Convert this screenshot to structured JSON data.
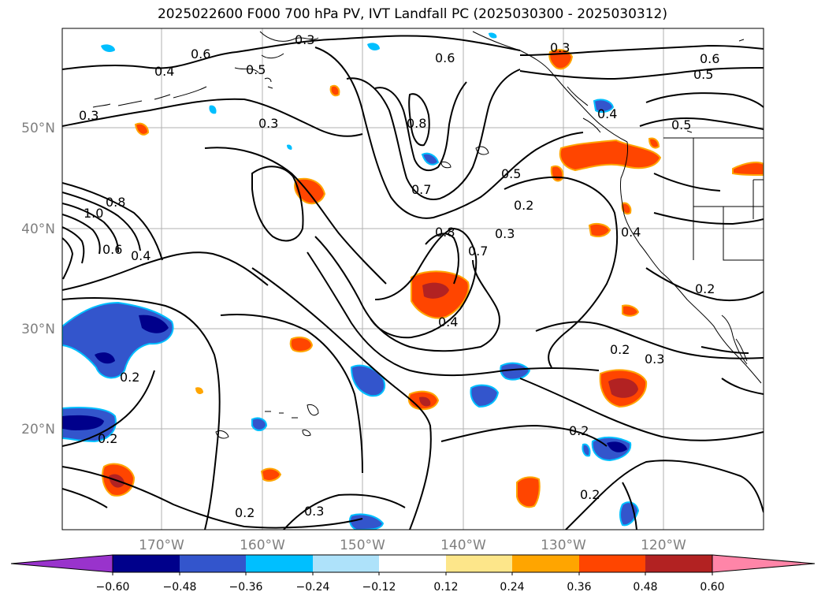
{
  "title": "2025022600 F000 700 hPa PV, IVT Landfall PC (2025030300 - 2025030312)",
  "lon_ticks": [
    "170°W",
    "160°W",
    "150°W",
    "140°W",
    "130°W",
    "120°W"
  ],
  "lat_ticks": [
    "50°N",
    "40°N",
    "30°N",
    "20°N"
  ],
  "contour_labels": [
    "0.6",
    "0.3",
    "0.4",
    "0.3",
    "0.5",
    "0.3",
    "0.6",
    "0.8",
    "0.7",
    "0.5",
    "0.2",
    "0.8",
    "0.7",
    "0.3",
    "0.4",
    "0.2",
    "0.4",
    "0.2",
    "0.3",
    "0.2",
    "0.2",
    "0.2",
    "0.3",
    "0.2",
    "0.6",
    "0.5",
    "0.5",
    "0.8",
    "1.0",
    "0.6",
    "0.4",
    "0.2",
    "0.4",
    "0.3"
  ],
  "colorbar": {
    "colors": [
      "#9933cc",
      "#00008b",
      "#3355cc",
      "#00bfff",
      "#aee2fa",
      "#ffffff",
      "#fde68a",
      "#ffa500",
      "#ff4500",
      "#b22222",
      "#ff85a8"
    ],
    "labels": [
      "−0.60",
      "−0.48",
      "−0.36",
      "−0.24",
      "−0.12",
      "0.12",
      "0.24",
      "0.36",
      "0.48",
      "0.60"
    ]
  }
}
